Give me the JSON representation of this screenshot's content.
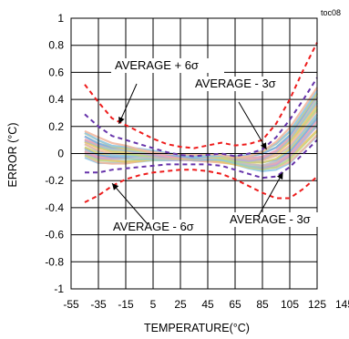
{
  "chart_data": {
    "type": "line",
    "id_label": "toc08",
    "title": "",
    "xlabel": "TEMPERATURE(°C)",
    "ylabel": "ERROR (°C)",
    "xlim": [
      -55,
      145
    ],
    "ylim": [
      -1,
      1
    ],
    "xticks": [
      -55,
      -35,
      -15,
      5,
      25,
      45,
      65,
      85,
      105,
      125,
      145
    ],
    "yticks": [
      -1,
      -0.8,
      -0.6,
      -0.4,
      -0.2,
      0,
      0.2,
      0.4,
      0.6,
      0.8,
      1
    ],
    "xtick_labels": [
      "-55",
      "-35",
      "-15",
      "5",
      "25",
      "45",
      "65",
      "85",
      "105",
      "125",
      "145"
    ],
    "ytick_labels": [
      "-1",
      "-0.8",
      "-0.6",
      "-0.4",
      "-0.2",
      "0",
      "0.2",
      "0.4",
      "0.6",
      "0.8",
      "1"
    ],
    "grid": true,
    "legend": "none",
    "colors": {
      "avg6": "#ee1c1c",
      "avg3": "#6633aa",
      "band": [
        "#8fc8e8",
        "#f2b8a0",
        "#b8d888",
        "#e8c870",
        "#b8a8d8",
        "#9ad0c0",
        "#f0a0b8",
        "#c0c0c0",
        "#7fb0e0",
        "#d8d070"
      ]
    },
    "series": [
      {
        "role": "average-plus-6sigma",
        "style": "dashed",
        "color": "#ee1c1c",
        "x": [
          -45,
          -35,
          -25,
          -15,
          -5,
          5,
          15,
          25,
          35,
          45,
          55,
          65,
          75,
          85,
          95,
          105,
          115,
          125
        ],
        "values": [
          0.51,
          0.38,
          0.26,
          0.21,
          0.16,
          0.11,
          0.07,
          0.05,
          0.04,
          0.06,
          0.08,
          0.06,
          0.07,
          0.1,
          0.22,
          0.4,
          0.62,
          0.82
        ]
      },
      {
        "role": "average-plus-3sigma",
        "style": "dashed",
        "color": "#6633aa",
        "x": [
          -45,
          -35,
          -25,
          -15,
          -5,
          5,
          15,
          25,
          35,
          45,
          55,
          65,
          75,
          85,
          95,
          105,
          115,
          125
        ],
        "values": [
          0.29,
          0.2,
          0.13,
          0.1,
          0.07,
          0.04,
          0.01,
          -0.01,
          -0.02,
          -0.01,
          0.0,
          -0.02,
          0.0,
          0.03,
          0.12,
          0.25,
          0.4,
          0.56
        ]
      },
      {
        "role": "average-minus-3sigma",
        "style": "dashed",
        "color": "#6633aa",
        "x": [
          -45,
          -35,
          -25,
          -15,
          -5,
          5,
          15,
          25,
          35,
          45,
          55,
          65,
          75,
          85,
          95,
          105,
          115,
          125
        ],
        "values": [
          -0.14,
          -0.14,
          -0.12,
          -0.11,
          -0.1,
          -0.09,
          -0.08,
          -0.08,
          -0.08,
          -0.08,
          -0.09,
          -0.12,
          -0.15,
          -0.18,
          -0.17,
          -0.1,
          0.0,
          0.1
        ]
      },
      {
        "role": "average-minus-6sigma",
        "style": "dashed",
        "color": "#ee1c1c",
        "x": [
          -45,
          -35,
          -25,
          -15,
          -5,
          5,
          15,
          25,
          35,
          45,
          55,
          65,
          75,
          85,
          95,
          105,
          115,
          125
        ],
        "values": [
          -0.36,
          -0.31,
          -0.24,
          -0.19,
          -0.16,
          -0.14,
          -0.13,
          -0.12,
          -0.12,
          -0.13,
          -0.15,
          -0.19,
          -0.24,
          -0.29,
          -0.33,
          -0.33,
          -0.26,
          -0.17
        ]
      }
    ],
    "band": {
      "x": [
        -45,
        -35,
        -25,
        -15,
        -5,
        5,
        15,
        25,
        35,
        45,
        55,
        65,
        75,
        85,
        95,
        105,
        115,
        125
      ],
      "upper": [
        0.16,
        0.11,
        0.07,
        0.06,
        0.04,
        0.02,
        0.0,
        -0.01,
        -0.02,
        -0.01,
        -0.01,
        -0.02,
        -0.01,
        0.02,
        0.08,
        0.18,
        0.33,
        0.49
      ],
      "lower": [
        -0.03,
        -0.07,
        -0.07,
        -0.07,
        -0.06,
        -0.05,
        -0.05,
        -0.05,
        -0.05,
        -0.05,
        -0.06,
        -0.08,
        -0.11,
        -0.13,
        -0.12,
        -0.07,
        0.03,
        0.13
      ],
      "count": 22
    },
    "annotations": [
      {
        "text": "AVERAGE + 6σ",
        "arrow_to": [
          -20,
          0.22
        ]
      },
      {
        "text": "AVERAGE - 3σ",
        "arrow_to": [
          88,
          0.03
        ]
      },
      {
        "text": "AVERAGE - 6σ",
        "arrow_to": [
          -25,
          -0.22
        ]
      },
      {
        "text": "AVERAGE - 3σ",
        "arrow_to": [
          100,
          -0.14
        ]
      }
    ]
  }
}
